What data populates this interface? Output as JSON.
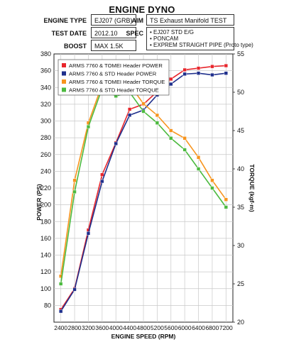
{
  "header": {
    "title": "ENGINE DYNO",
    "engine_type_label": "ENGINE TYPE",
    "engine_type_value": "EJ207 (GRB)",
    "test_date_label": "TEST DATE",
    "test_date_value": "2012.10",
    "boost_label": "BOOST",
    "boost_value": "MAX 1.5K",
    "aim_label": "AIM",
    "aim_value": "TS Exhaust Manifold TEST",
    "spec_label": "SPEC",
    "spec_lines": [
      "• EJ207 STD E/G",
      "• PONCAM",
      "• EXPREM STRAIGHT PIPE (Proto type)"
    ]
  },
  "chart_data": {
    "type": "line",
    "title": "ENGINE DYNO",
    "xlabel": "ENGINE SPEED (RPM)",
    "ylabel": "POWER (PS)",
    "y2label": "TORQUE (kgf·m)",
    "x": [
      2400,
      2800,
      3200,
      3600,
      4000,
      4400,
      4800,
      5200,
      5600,
      6000,
      6400,
      6800,
      7200
    ],
    "xticks": [
      "2400",
      "2800",
      "3200",
      "3600",
      "4000",
      "4400",
      "4800",
      "5200",
      "5600",
      "6000",
      "6400",
      "6800",
      "7200"
    ],
    "ylim": [
      60,
      380
    ],
    "yticks": [
      "80",
      "100",
      "120",
      "140",
      "160",
      "180",
      "200",
      "220",
      "240",
      "260",
      "280",
      "300",
      "320",
      "340",
      "360",
      "380"
    ],
    "y2lim": [
      20,
      55
    ],
    "y2ticks": [
      "20",
      "25",
      "30",
      "35",
      "40",
      "45",
      "50",
      "55"
    ],
    "grid": true,
    "legend_position": "top-left",
    "series": [
      {
        "name": "ARMS 7760 & TOMEI Header POWER",
        "axis": "left",
        "color": "#e8262c",
        "marker": "square",
        "values": [
          75,
          100,
          170,
          236,
          274,
          314,
          320,
          335,
          350,
          361,
          363,
          365,
          366
        ]
      },
      {
        "name": "ARMS 7760 & STD Header POWER",
        "axis": "left",
        "color": "#1f2f8c",
        "marker": "square",
        "values": [
          73,
          99,
          166,
          228,
          273,
          307,
          313,
          331,
          344,
          356,
          357,
          355,
          357
        ]
      },
      {
        "name": "ARMS 7760 & TOMEI Header TORQUE",
        "axis": "right",
        "color": "#f7941d",
        "marker": "square",
        "values": [
          26,
          38.5,
          46,
          51,
          50.5,
          51,
          48.5,
          47,
          45,
          44,
          41.5,
          38.5,
          36
        ]
      },
      {
        "name": "ARMS 7760 & STD Header TORQUE",
        "axis": "right",
        "color": "#4cba3f",
        "marker": "square",
        "values": [
          25,
          37,
          45.5,
          50.5,
          49.5,
          50,
          47.5,
          46,
          44,
          42.5,
          40,
          37.5,
          35
        ]
      }
    ]
  }
}
